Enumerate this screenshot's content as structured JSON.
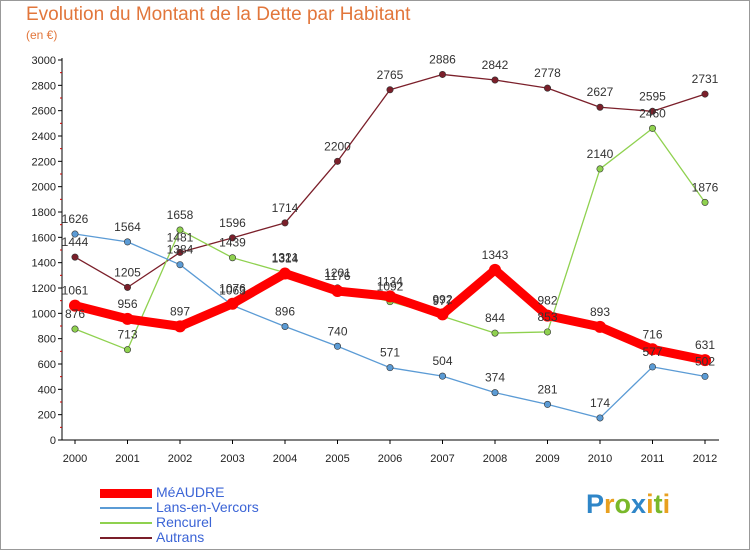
{
  "title": "Evolution du Montant de la Dette par Habitant",
  "subtitle": "(en €)",
  "logo": {
    "text": "Proxiti",
    "letters": [
      {
        "ch": "P",
        "color": "#2f86c8"
      },
      {
        "ch": "r",
        "color": "#e8a020"
      },
      {
        "ch": "o",
        "color": "#79b82a"
      },
      {
        "ch": "x",
        "color": "#2f86c8"
      },
      {
        "ch": "i",
        "color": "#e8a020"
      },
      {
        "ch": "t",
        "color": "#79b82a"
      },
      {
        "ch": "i",
        "color": "#e8a020"
      }
    ]
  },
  "chart_data": {
    "type": "line",
    "title": "Evolution du Montant de la Dette par Habitant",
    "subtitle": "(en €)",
    "x": [
      "2000",
      "2001",
      "2002",
      "2003",
      "2004",
      "2005",
      "2006",
      "2007",
      "2008",
      "2009",
      "2010",
      "2011",
      "2012"
    ],
    "y_ticks": [
      0,
      200,
      400,
      600,
      800,
      1000,
      1200,
      1400,
      1600,
      1800,
      2000,
      2200,
      2400,
      2600,
      2800,
      3000
    ],
    "ylim": [
      0,
      3000
    ],
    "grid": false,
    "legend_position": "bottom-left",
    "series": [
      {
        "name": "MéAUDRE",
        "color": "#ff0000",
        "values": [
          1061,
          956,
          897,
          1076,
          1314,
          1176,
          1134,
          992,
          1343,
          982,
          893,
          716,
          631
        ]
      },
      {
        "name": "Lans-en-Vercors",
        "color": "#5b9bd5",
        "values": [
          1626,
          1564,
          1384,
          1063,
          896,
          740,
          571,
          504,
          374,
          281,
          174,
          577,
          502
        ]
      },
      {
        "name": "Rencurel",
        "color": "#8fd14f",
        "values": [
          876,
          713,
          1658,
          1439,
          1321,
          1201,
          1092,
          977,
          844,
          853,
          2140,
          2460,
          1876
        ]
      },
      {
        "name": "Autrans",
        "color": "#7b1f2a",
        "values": [
          1444,
          1205,
          1481,
          1596,
          1714,
          2200,
          2765,
          2886,
          2842,
          2778,
          2627,
          2595,
          2731
        ]
      }
    ]
  }
}
